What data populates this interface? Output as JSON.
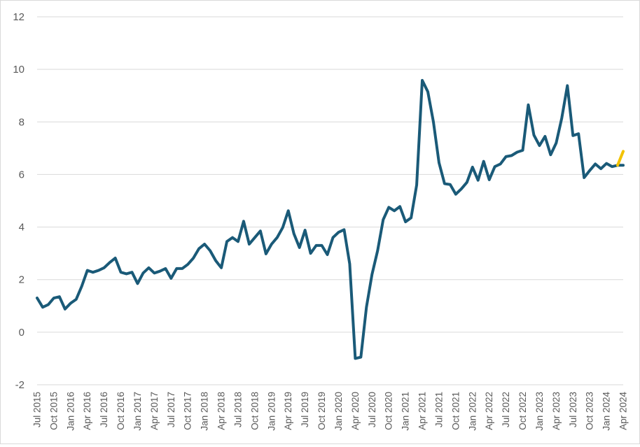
{
  "chart_data": {
    "type": "line",
    "title": "",
    "xlabel": "",
    "ylabel": "",
    "ylim": [
      -2,
      12
    ],
    "y_ticks": [
      "-2",
      "0",
      "2",
      "4",
      "6",
      "8",
      "10",
      "12"
    ],
    "grid": "horizontal",
    "legend": "none",
    "x_tick_labels": [
      "Jul 2015",
      "Oct 2015",
      "Jan 2016",
      "Apr 2016",
      "Jul 2016",
      "Oct 2016",
      "Jan 2017",
      "Apr 2017",
      "Jul 2017",
      "Oct 2017",
      "Jan 2018",
      "Apr 2018",
      "Jul 2018",
      "Oct 2018",
      "Jan 2019",
      "Apr 2019",
      "Jul 2019",
      "Oct 2019",
      "Jan 2020",
      "Apr 2020",
      "Jul 2020",
      "Oct 2020",
      "Jan 2021",
      "Apr 2021",
      "Jul 2021",
      "Oct 2021",
      "Jan 2022",
      "Apr 2022",
      "Jul 2022",
      "Oct 2022",
      "Jan 2023",
      "Apr 2023",
      "Jul 2023",
      "Oct 2023",
      "Jan 2024",
      "Apr 2024"
    ],
    "x": [
      "2015-07",
      "2015-08",
      "2015-09",
      "2015-10",
      "2015-11",
      "2015-12",
      "2016-01",
      "2016-02",
      "2016-03",
      "2016-04",
      "2016-05",
      "2016-06",
      "2016-07",
      "2016-08",
      "2016-09",
      "2016-10",
      "2016-11",
      "2016-12",
      "2017-01",
      "2017-02",
      "2017-03",
      "2017-04",
      "2017-05",
      "2017-06",
      "2017-07",
      "2017-08",
      "2017-09",
      "2017-10",
      "2017-11",
      "2017-12",
      "2018-01",
      "2018-02",
      "2018-03",
      "2018-04",
      "2018-05",
      "2018-06",
      "2018-07",
      "2018-08",
      "2018-09",
      "2018-10",
      "2018-11",
      "2018-12",
      "2019-01",
      "2019-02",
      "2019-03",
      "2019-04",
      "2019-05",
      "2019-06",
      "2019-07",
      "2019-08",
      "2019-09",
      "2019-10",
      "2019-11",
      "2019-12",
      "2020-01",
      "2020-02",
      "2020-03",
      "2020-04",
      "2020-05",
      "2020-06",
      "2020-07",
      "2020-08",
      "2020-09",
      "2020-10",
      "2020-11",
      "2020-12",
      "2021-01",
      "2021-02",
      "2021-03",
      "2021-04",
      "2021-05",
      "2021-06",
      "2021-07",
      "2021-08",
      "2021-09",
      "2021-10",
      "2021-11",
      "2021-12",
      "2022-01",
      "2022-02",
      "2022-03",
      "2022-04",
      "2022-05",
      "2022-06",
      "2022-07",
      "2022-08",
      "2022-09",
      "2022-10",
      "2022-11",
      "2022-12",
      "2023-01",
      "2023-02",
      "2023-03",
      "2023-04",
      "2023-05",
      "2023-06",
      "2023-07",
      "2023-08",
      "2023-09",
      "2023-10",
      "2023-11",
      "2023-12",
      "2024-01",
      "2024-02",
      "2024-03",
      "2024-04"
    ],
    "series": [
      {
        "color": "#1a5a78",
        "values": [
          1.3,
          0.95,
          1.05,
          1.3,
          1.35,
          0.88,
          1.1,
          1.25,
          1.75,
          2.35,
          2.28,
          2.35,
          2.45,
          2.65,
          2.82,
          2.28,
          2.22,
          2.28,
          1.85,
          2.25,
          2.45,
          2.25,
          2.32,
          2.42,
          2.05,
          2.42,
          2.42,
          2.58,
          2.82,
          3.18,
          3.35,
          3.1,
          2.72,
          2.45,
          3.45,
          3.6,
          3.45,
          4.22,
          3.35,
          3.6,
          3.85,
          2.98,
          3.35,
          3.6,
          3.98,
          4.62,
          3.75,
          3.22,
          3.88,
          3.0,
          3.3,
          3.3,
          2.95,
          3.6,
          3.8,
          3.9,
          2.6,
          -1.0,
          -0.95,
          0.95,
          2.2,
          3.1,
          4.28,
          4.75,
          4.62,
          4.78,
          4.2,
          4.35,
          5.6,
          9.58,
          9.15,
          8.0,
          6.45,
          5.65,
          5.62,
          5.25,
          5.45,
          5.7,
          6.28,
          5.78,
          6.5,
          5.8,
          6.3,
          6.4,
          6.68,
          6.72,
          6.85,
          6.92,
          8.65,
          7.5,
          7.1,
          7.45,
          6.75,
          7.2,
          8.15,
          9.38,
          7.48,
          7.55,
          5.88,
          6.15,
          6.4,
          6.22,
          6.42,
          6.3,
          6.35,
          6.35
        ]
      },
      {
        "color": "#f2c200",
        "x": [
          "2024-03",
          "2024-04"
        ],
        "values": [
          6.35,
          6.88
        ]
      }
    ]
  }
}
